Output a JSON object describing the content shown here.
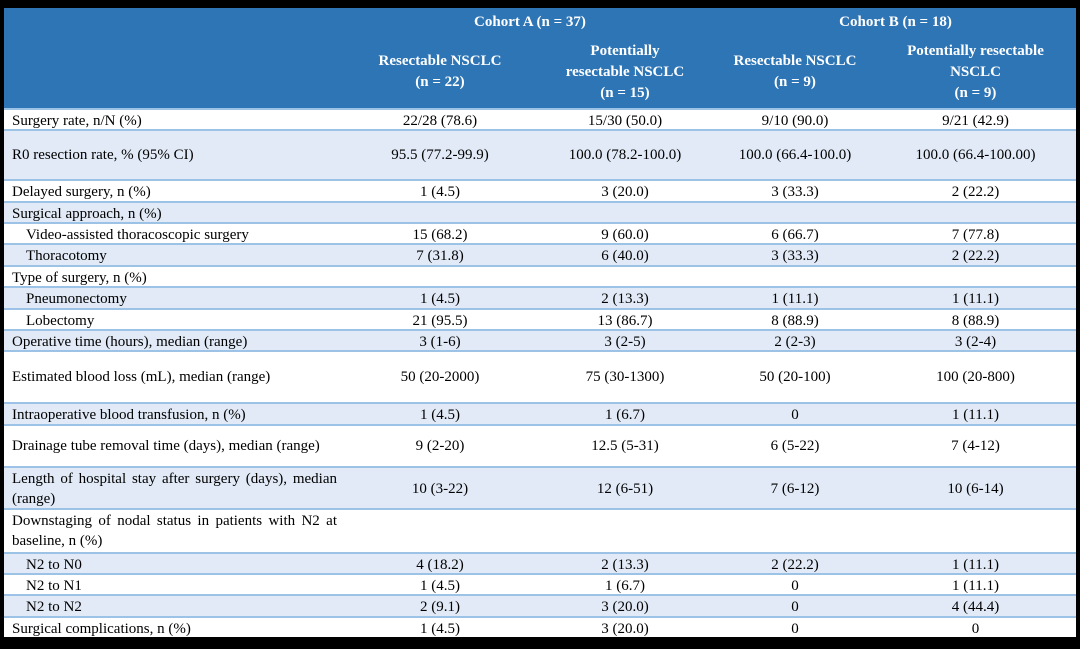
{
  "colors": {
    "header_bg": "#2E75B6",
    "header_text": "#FFFFFF",
    "row_alt_bg": "#E1EAF6",
    "row_border": "#9CC2E5",
    "frame": "#000000",
    "body_text": "#000000"
  },
  "table": {
    "header": {
      "cohorts": [
        {
          "label": "Cohort A (n = 37)"
        },
        {
          "label": "Cohort B (n = 18)"
        }
      ],
      "subheaders": [
        "Resectable NSCLC\n(n = 22)",
        "Potentially\nresectable NSCLC\n(n = 15)",
        "Resectable NSCLC\n(n = 9)",
        "Potentially resectable\nNSCLC\n(n = 9)"
      ]
    },
    "rows": [
      {
        "label": "Surgery rate, n/N (%)",
        "indent": false,
        "values": [
          "22/28 (78.6)",
          "15/30 (50.0)",
          "9/10 (90.0)",
          "9/21 (42.9)"
        ]
      },
      {
        "label": "R0 resection rate, % (95% CI)",
        "indent": false,
        "values": [
          "95.5 (77.2-99.9)",
          "100.0 (78.2-100.0)",
          "100.0 (66.4-100.0)",
          "100.0 (66.4-100.00)"
        ]
      },
      {
        "label": "Delayed surgery, n (%)",
        "indent": false,
        "values": [
          "1 (4.5)",
          "3 (20.0)",
          "3 (33.3)",
          "2 (22.2)"
        ]
      },
      {
        "label": "Surgical approach, n (%)",
        "indent": false,
        "values": [
          "",
          "",
          "",
          ""
        ]
      },
      {
        "label": "Video-assisted thoracoscopic surgery",
        "indent": true,
        "values": [
          "15 (68.2)",
          "9 (60.0)",
          "6 (66.7)",
          "7 (77.8)"
        ]
      },
      {
        "label": "Thoracotomy",
        "indent": true,
        "values": [
          "7 (31.8)",
          "6 (40.0)",
          "3 (33.3)",
          "2 (22.2)"
        ]
      },
      {
        "label": "Type of surgery, n (%)",
        "indent": false,
        "values": [
          "",
          "",
          "",
          ""
        ]
      },
      {
        "label": "Pneumonectomy",
        "indent": true,
        "values": [
          "1 (4.5)",
          "2 (13.3)",
          "1 (11.1)",
          "1 (11.1)"
        ]
      },
      {
        "label": "Lobectomy",
        "indent": true,
        "values": [
          "21 (95.5)",
          "13 (86.7)",
          "8 (88.9)",
          "8 (88.9)"
        ]
      },
      {
        "label": "Operative time (hours), median (range)",
        "indent": false,
        "values": [
          "3 (1-6)",
          "3 (2-5)",
          "2 (2-3)",
          "3 (2-4)"
        ]
      },
      {
        "label": "Estimated blood loss (mL), median (range)",
        "indent": false,
        "values": [
          "50 (20-2000)",
          "75 (30-1300)",
          "50 (20-100)",
          "100 (20-800)"
        ]
      },
      {
        "label": "Intraoperative blood transfusion, n (%)",
        "indent": false,
        "values": [
          "1 (4.5)",
          "1 (6.7)",
          "0",
          "1 (11.1)"
        ]
      },
      {
        "label": "Drainage tube removal time (days), median (range)",
        "indent": false,
        "values": [
          "9 (2-20)",
          "12.5 (5-31)",
          "6 (5-22)",
          "7 (4-12)"
        ]
      },
      {
        "label": "Length of hospital stay after surgery (days), median (range)",
        "indent": false,
        "values": [
          "10 (3-22)",
          "12 (6-51)",
          "7 (6-12)",
          "10 (6-14)"
        ]
      },
      {
        "label": "Downstaging of nodal status in patients with N2 at baseline, n (%)",
        "indent": false,
        "values": [
          "",
          "",
          "",
          ""
        ]
      },
      {
        "label": "N2 to N0",
        "indent": true,
        "values": [
          "4 (18.2)",
          "2 (13.3)",
          "2 (22.2)",
          "1 (11.1)"
        ]
      },
      {
        "label": "N2 to N1",
        "indent": true,
        "values": [
          "1 (4.5)",
          "1 (6.7)",
          "0",
          "1 (11.1)"
        ]
      },
      {
        "label": "N2 to N2",
        "indent": true,
        "values": [
          "2 (9.1)",
          "3 (20.0)",
          "0",
          "4 (44.4)"
        ]
      },
      {
        "label": "Surgical complications, n (%)",
        "indent": false,
        "values": [
          "1 (4.5)",
          "3 (20.0)",
          "0",
          "0"
        ]
      }
    ]
  }
}
